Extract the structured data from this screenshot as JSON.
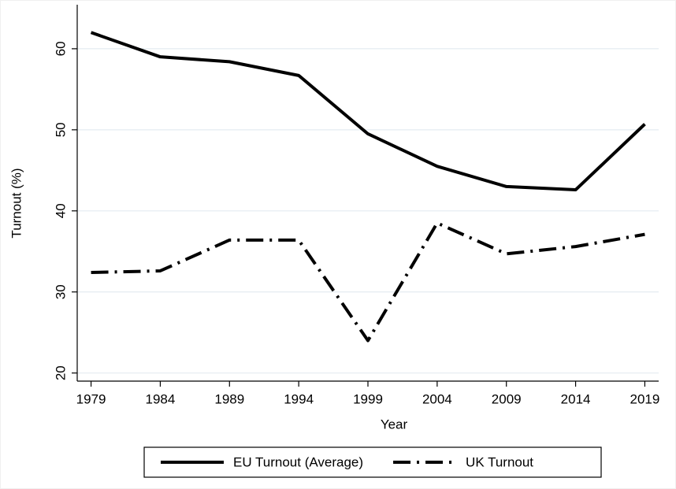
{
  "chart_data": {
    "type": "line",
    "x_label": "Year",
    "y_label": "Turnout (%)",
    "x": [
      1979,
      1984,
      1989,
      1994,
      1999,
      2004,
      2009,
      2014,
      2019
    ],
    "series": [
      {
        "name": "EU Turnout (Average)",
        "color": "#000000",
        "line_style": "solid",
        "values": [
          62.0,
          59.0,
          58.4,
          56.7,
          49.5,
          45.5,
          43.0,
          42.6,
          50.7
        ]
      },
      {
        "name": "UK Turnout",
        "color": "#000000",
        "line_style": "dash-dot",
        "values": [
          32.4,
          32.6,
          36.4,
          36.4,
          24.0,
          38.5,
          34.7,
          35.6,
          37.1
        ]
      }
    ],
    "xlim": [
      1978,
      2020
    ],
    "xticks": [
      1979,
      1984,
      1989,
      1994,
      1999,
      2004,
      2009,
      2014,
      2019
    ],
    "ylim": [
      19,
      63
    ],
    "yticks": [
      20,
      30,
      40,
      50,
      60
    ],
    "grid": true,
    "legend": "bottom"
  }
}
